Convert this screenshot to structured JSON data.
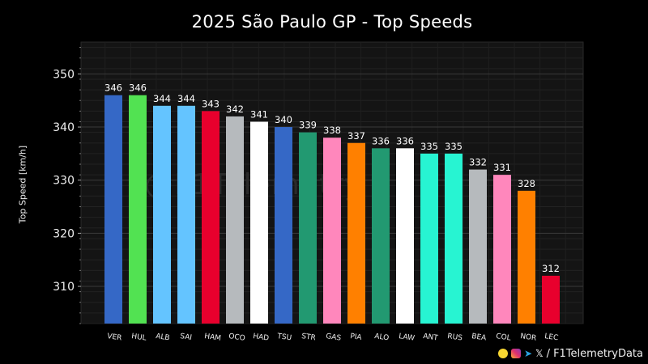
{
  "page": {
    "title": "2025 São Paulo GP - Top Speeds"
  },
  "footer": {
    "separator": "/",
    "handle": "F1TelemetryData",
    "icons": [
      "snapchat-icon",
      "instagram-icon",
      "telegram-icon",
      "x-icon"
    ]
  },
  "watermark": "@F1Telemetry",
  "chart_data": {
    "type": "bar",
    "title": "2025 São Paulo GP - Top Speeds",
    "xlabel": "",
    "ylabel": "Top Speed [km/h]",
    "ylim": [
      303,
      356
    ],
    "yticks": [
      310,
      320,
      330,
      340,
      350
    ],
    "grid": true,
    "categories": [
      "VER",
      "HUL",
      "ALB",
      "SAI",
      "HAM",
      "OCO",
      "HAD",
      "TSU",
      "STR",
      "GAS",
      "PIA",
      "ALO",
      "LAW",
      "ANT",
      "RUS",
      "BEA",
      "COL",
      "NOR",
      "LEC"
    ],
    "values": [
      346,
      346,
      344,
      344,
      343,
      342,
      341,
      340,
      339,
      338,
      337,
      336,
      336,
      335,
      335,
      332,
      331,
      328,
      312
    ],
    "colors": [
      "#3568c6",
      "#52e252",
      "#64c4ff",
      "#64c4ff",
      "#e8002d",
      "#b6babd",
      "#ffffff",
      "#3568c6",
      "#229971",
      "#ff87bc",
      "#ff8000",
      "#229971",
      "#ffffff",
      "#27f4d2",
      "#27f4d2",
      "#b6babd",
      "#ff87bc",
      "#ff8000",
      "#e8002d"
    ]
  }
}
